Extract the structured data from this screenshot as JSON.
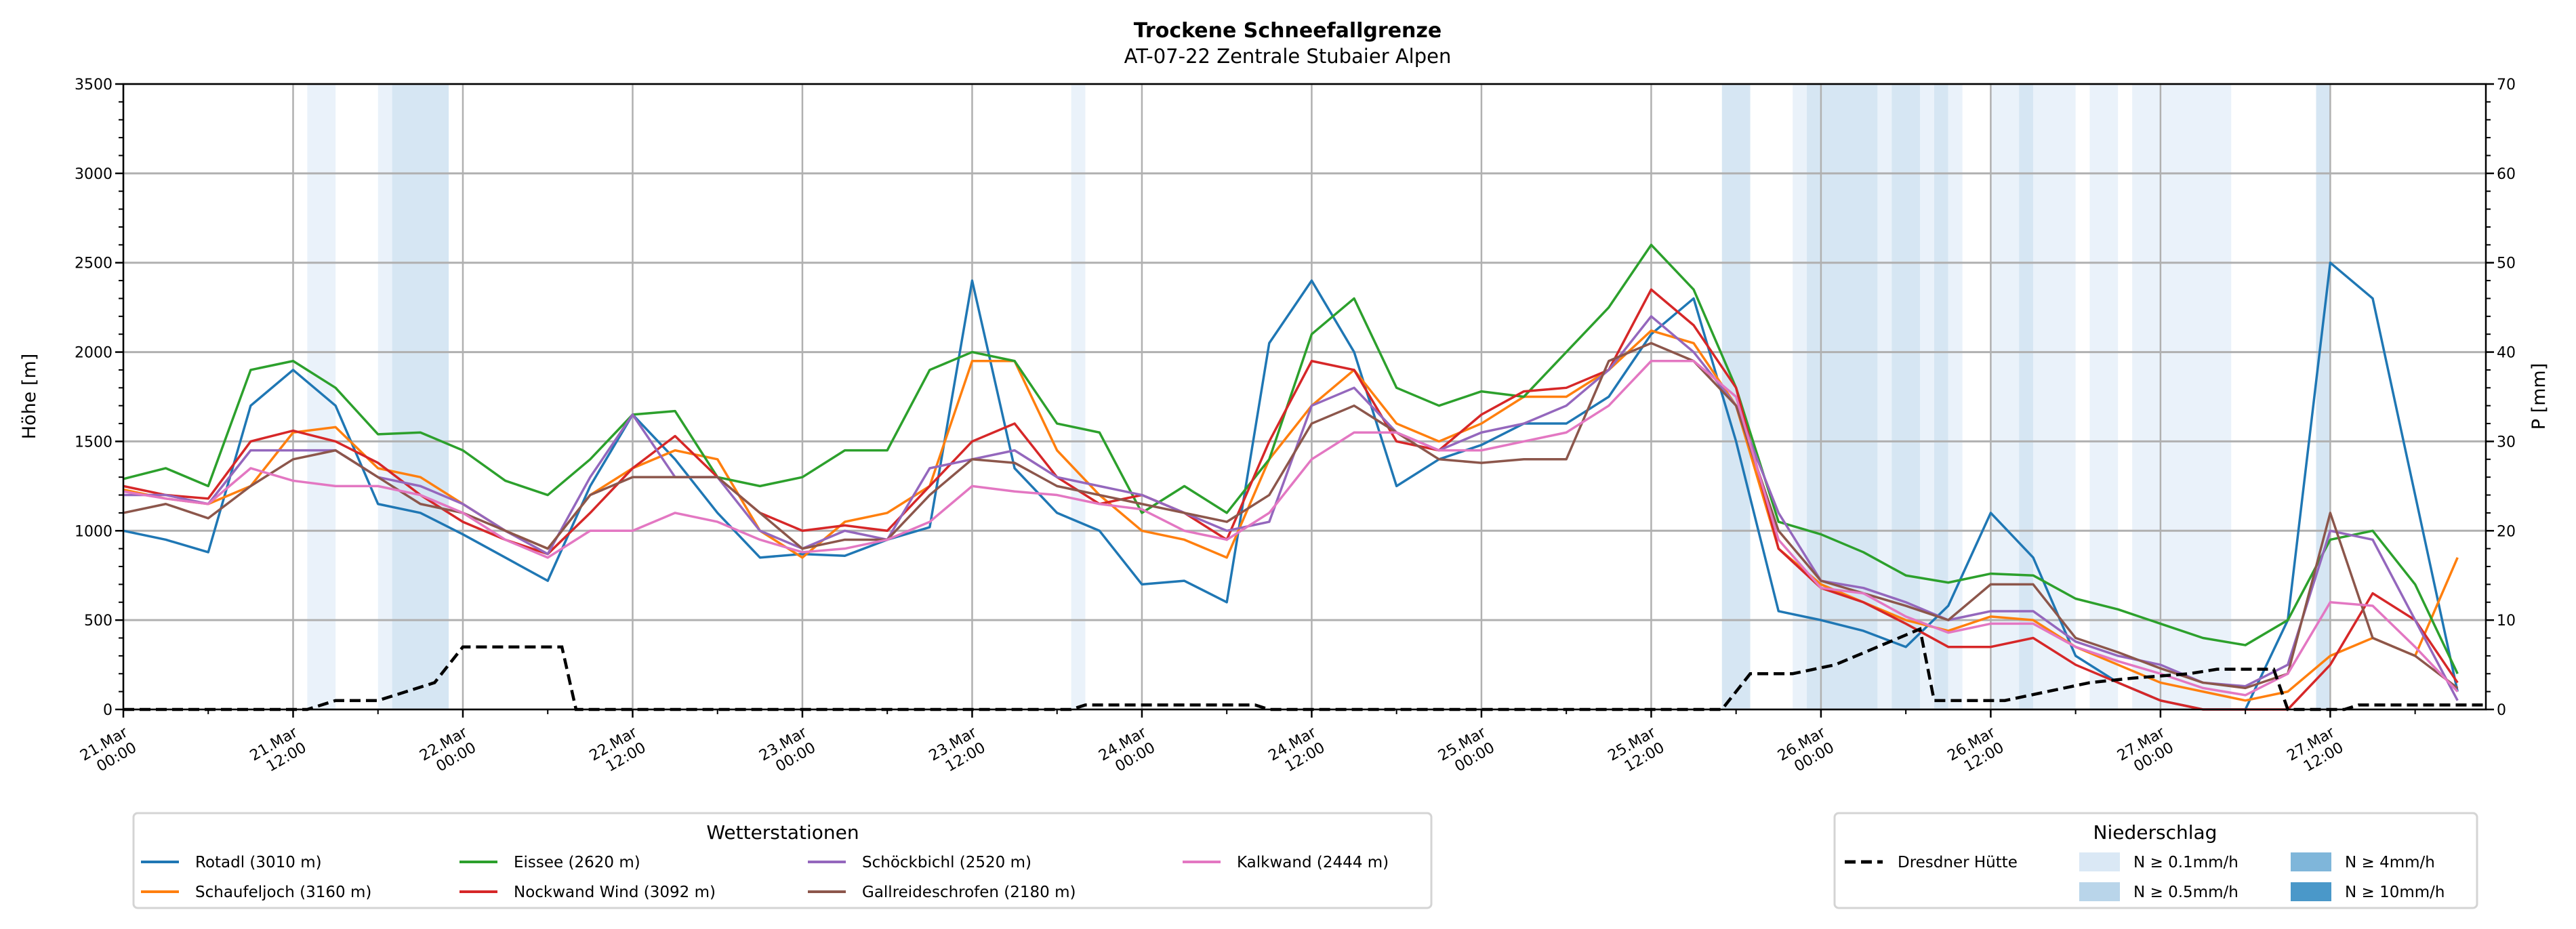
{
  "chart_data": {
    "type": "line",
    "title": "Trockene Schneefallgrenze",
    "subtitle": "AT-07-22 Zentrale Stubaier Alpen",
    "ylabel": "Höhe [m]",
    "ylabel_right": "P [mm]",
    "ylim": [
      0,
      3500
    ],
    "ylim_right": [
      0,
      70
    ],
    "yticks": [
      "0",
      "500",
      "1000",
      "1500",
      "2000",
      "2500",
      "3000",
      "3500"
    ],
    "yticks_right": [
      "0",
      "10",
      "20",
      "30",
      "40",
      "50",
      "60",
      "70"
    ],
    "x_unit": "hours since 21.Mar 00:00",
    "xlim": [
      0,
      167
    ],
    "xticks": [
      {
        "h": 0,
        "l1": "21.Mar",
        "l2": "00:00"
      },
      {
        "h": 12,
        "l1": "21.Mar",
        "l2": "12:00"
      },
      {
        "h": 24,
        "l1": "22.Mar",
        "l2": "00:00"
      },
      {
        "h": 36,
        "l1": "22.Mar",
        "l2": "12:00"
      },
      {
        "h": 48,
        "l1": "23.Mar",
        "l2": "00:00"
      },
      {
        "h": 60,
        "l1": "23.Mar",
        "l2": "12:00"
      },
      {
        "h": 72,
        "l1": "24.Mar",
        "l2": "00:00"
      },
      {
        "h": 84,
        "l1": "24.Mar",
        "l2": "12:00"
      },
      {
        "h": 96,
        "l1": "25.Mar",
        "l2": "00:00"
      },
      {
        "h": 108,
        "l1": "25.Mar",
        "l2": "12:00"
      },
      {
        "h": 120,
        "l1": "26.Mar",
        "l2": "00:00"
      },
      {
        "h": 132,
        "l1": "26.Mar",
        "l2": "12:00"
      },
      {
        "h": 144,
        "l1": "27.Mar",
        "l2": "00:00"
      },
      {
        "h": 156,
        "l1": "27.Mar",
        "l2": "12:00"
      }
    ],
    "x_step_hours": 3,
    "grid": true,
    "series": [
      {
        "name": "Rotadl (3010 m)",
        "color": "#1f77b4",
        "values": [
          1000,
          950,
          880,
          1700,
          1900,
          1700,
          1150,
          1100,
          980,
          850,
          720,
          1250,
          1650,
          1400,
          1100,
          850,
          870,
          860,
          950,
          1020,
          2400,
          1350,
          1100,
          1000,
          700,
          720,
          600,
          2050,
          2400,
          2000,
          1250,
          1400,
          1480,
          1600,
          1600,
          1750,
          2100,
          2300,
          1500,
          550,
          500,
          440,
          350,
          580,
          1100,
          850,
          300,
          150,
          50,
          0,
          0,
          500,
          2500,
          2300,
          1200,
          100
        ]
      },
      {
        "name": "Schaufeljoch (3160 m)",
        "color": "#ff7f0e",
        "values": [
          1230,
          1180,
          1150,
          1250,
          1550,
          1580,
          1350,
          1300,
          1150,
          1000,
          900,
          1200,
          1350,
          1450,
          1400,
          1000,
          850,
          1050,
          1100,
          1250,
          1950,
          1950,
          1450,
          1200,
          1000,
          950,
          850,
          1400,
          1700,
          1900,
          1600,
          1500,
          1600,
          1750,
          1750,
          1900,
          2120,
          2050,
          1700,
          900,
          700,
          600,
          500,
          440,
          520,
          500,
          350,
          250,
          150,
          100,
          50,
          100,
          300,
          400,
          300,
          850
        ]
      },
      {
        "name": "Eissee (2620 m)",
        "color": "#2ca02c",
        "values": [
          1290,
          1350,
          1250,
          1900,
          1950,
          1800,
          1540,
          1550,
          1450,
          1280,
          1200,
          1400,
          1650,
          1670,
          1300,
          1250,
          1300,
          1450,
          1450,
          1900,
          2000,
          1950,
          1600,
          1550,
          1100,
          1250,
          1100,
          1400,
          2100,
          2300,
          1800,
          1700,
          1780,
          1750,
          2000,
          2250,
          2600,
          2350,
          1800,
          1050,
          980,
          880,
          750,
          710,
          760,
          750,
          620,
          560,
          480,
          400,
          360,
          500,
          950,
          1000,
          700,
          200
        ]
      },
      {
        "name": "Nockwand Wind (3092 m)",
        "color": "#d62728",
        "values": [
          1250,
          1200,
          1180,
          1500,
          1560,
          1500,
          1380,
          1200,
          1050,
          950,
          870,
          1100,
          1350,
          1530,
          1300,
          1100,
          1000,
          1030,
          1000,
          1250,
          1500,
          1600,
          1300,
          1150,
          1200,
          1100,
          950,
          1500,
          1950,
          1900,
          1500,
          1450,
          1650,
          1780,
          1800,
          1900,
          2350,
          2150,
          1800,
          900,
          680,
          600,
          480,
          350,
          350,
          400,
          250,
          150,
          50,
          0,
          0,
          0,
          250,
          650,
          500,
          150
        ]
      },
      {
        "name": "Schöckbichl (2520 m)",
        "color": "#9467bd",
        "values": [
          1200,
          1200,
          1150,
          1450,
          1450,
          1450,
          1300,
          1250,
          1150,
          1000,
          870,
          1300,
          1650,
          1300,
          1300,
          1000,
          900,
          1000,
          950,
          1350,
          1400,
          1450,
          1300,
          1250,
          1200,
          1100,
          1000,
          1050,
          1700,
          1800,
          1550,
          1450,
          1550,
          1600,
          1700,
          1900,
          2200,
          2000,
          1700,
          1100,
          720,
          680,
          600,
          500,
          550,
          550,
          380,
          300,
          250,
          150,
          130,
          250,
          1000,
          950,
          500,
          50
        ]
      },
      {
        "name": "Gallreideschrofen (2180 m)",
        "color": "#8c564b",
        "values": [
          1100,
          1150,
          1070,
          1250,
          1400,
          1450,
          1300,
          1150,
          1100,
          1000,
          900,
          1200,
          1300,
          1300,
          1300,
          1100,
          900,
          950,
          950,
          1200,
          1400,
          1380,
          1250,
          1200,
          1150,
          1100,
          1050,
          1200,
          1600,
          1700,
          1550,
          1400,
          1380,
          1400,
          1400,
          1950,
          2050,
          1950,
          1700,
          1000,
          720,
          650,
          580,
          500,
          700,
          700,
          400,
          320,
          230,
          150,
          120,
          200,
          1100,
          400,
          300,
          120
        ]
      },
      {
        "name": "Kalkwand (2444 m)",
        "color": "#e377c2",
        "values": [
          1220,
          1180,
          1150,
          1350,
          1280,
          1250,
          1250,
          1200,
          1100,
          950,
          850,
          1000,
          1000,
          1100,
          1050,
          950,
          880,
          900,
          950,
          1050,
          1250,
          1220,
          1200,
          1150,
          1120,
          1000,
          950,
          1100,
          1400,
          1550,
          1550,
          1450,
          1450,
          1500,
          1550,
          1700,
          1950,
          1950,
          1750,
          950,
          680,
          650,
          520,
          430,
          480,
          480,
          350,
          270,
          200,
          120,
          80,
          200,
          600,
          580,
          350,
          100
        ]
      }
    ],
    "precip_series": {
      "name": "Dresdner Hütte",
      "color": "#000000",
      "points": [
        [
          0,
          0
        ],
        [
          13,
          0
        ],
        [
          15,
          1
        ],
        [
          18,
          1
        ],
        [
          20,
          2
        ],
        [
          22,
          3
        ],
        [
          24,
          7
        ],
        [
          31,
          7
        ],
        [
          32,
          0
        ],
        [
          67,
          0
        ],
        [
          68,
          0.5
        ],
        [
          80,
          0.5
        ],
        [
          81,
          0
        ],
        [
          113,
          0
        ],
        [
          115,
          4
        ],
        [
          118,
          4
        ],
        [
          121,
          5
        ],
        [
          124,
          7
        ],
        [
          127,
          9
        ],
        [
          128,
          1
        ],
        [
          133,
          1
        ],
        [
          136,
          2
        ],
        [
          139,
          3
        ],
        [
          142,
          3.5
        ],
        [
          146,
          4
        ],
        [
          148,
          4.5
        ],
        [
          152,
          4.5
        ],
        [
          153,
          0
        ],
        [
          157,
          0
        ],
        [
          158,
          0.5
        ],
        [
          167,
          0.5
        ]
      ]
    },
    "precip_bands": [
      {
        "from": 13,
        "to": 15,
        "level": 0
      },
      {
        "from": 18,
        "to": 19,
        "level": 0
      },
      {
        "from": 19,
        "to": 23,
        "level": 1
      },
      {
        "from": 67,
        "to": 68,
        "level": 0
      },
      {
        "from": 113,
        "to": 115,
        "level": 1
      },
      {
        "from": 118,
        "to": 119,
        "level": 0
      },
      {
        "from": 119,
        "to": 124,
        "level": 1
      },
      {
        "from": 124,
        "to": 125,
        "level": 0
      },
      {
        "from": 125,
        "to": 127,
        "level": 1
      },
      {
        "from": 127,
        "to": 128,
        "level": 0
      },
      {
        "from": 128,
        "to": 129,
        "level": 1
      },
      {
        "from": 129,
        "to": 130,
        "level": 0
      },
      {
        "from": 132,
        "to": 134,
        "level": 0
      },
      {
        "from": 134,
        "to": 135,
        "level": 1
      },
      {
        "from": 135,
        "to": 138,
        "level": 0
      },
      {
        "from": 139,
        "to": 141,
        "level": 0
      },
      {
        "from": 142,
        "to": 149,
        "level": 0
      },
      {
        "from": 155,
        "to": 156,
        "level": 1
      }
    ],
    "legend_stations": {
      "title": "Wetterstationen",
      "placement": "bottom-left"
    },
    "legend_precip": {
      "title": "Niederschlag",
      "placement": "bottom-right",
      "levels": [
        {
          "label": "N ≥ 0.1mm/h",
          "color": "#dae8f5"
        },
        {
          "label": "N ≥ 0.5mm/h",
          "color": "#b9d5ea"
        },
        {
          "label": "N ≥ 4mm/h",
          "color": "#7fb6da"
        },
        {
          "label": "N ≥ 10mm/h",
          "color": "#4a98c9"
        }
      ]
    }
  }
}
